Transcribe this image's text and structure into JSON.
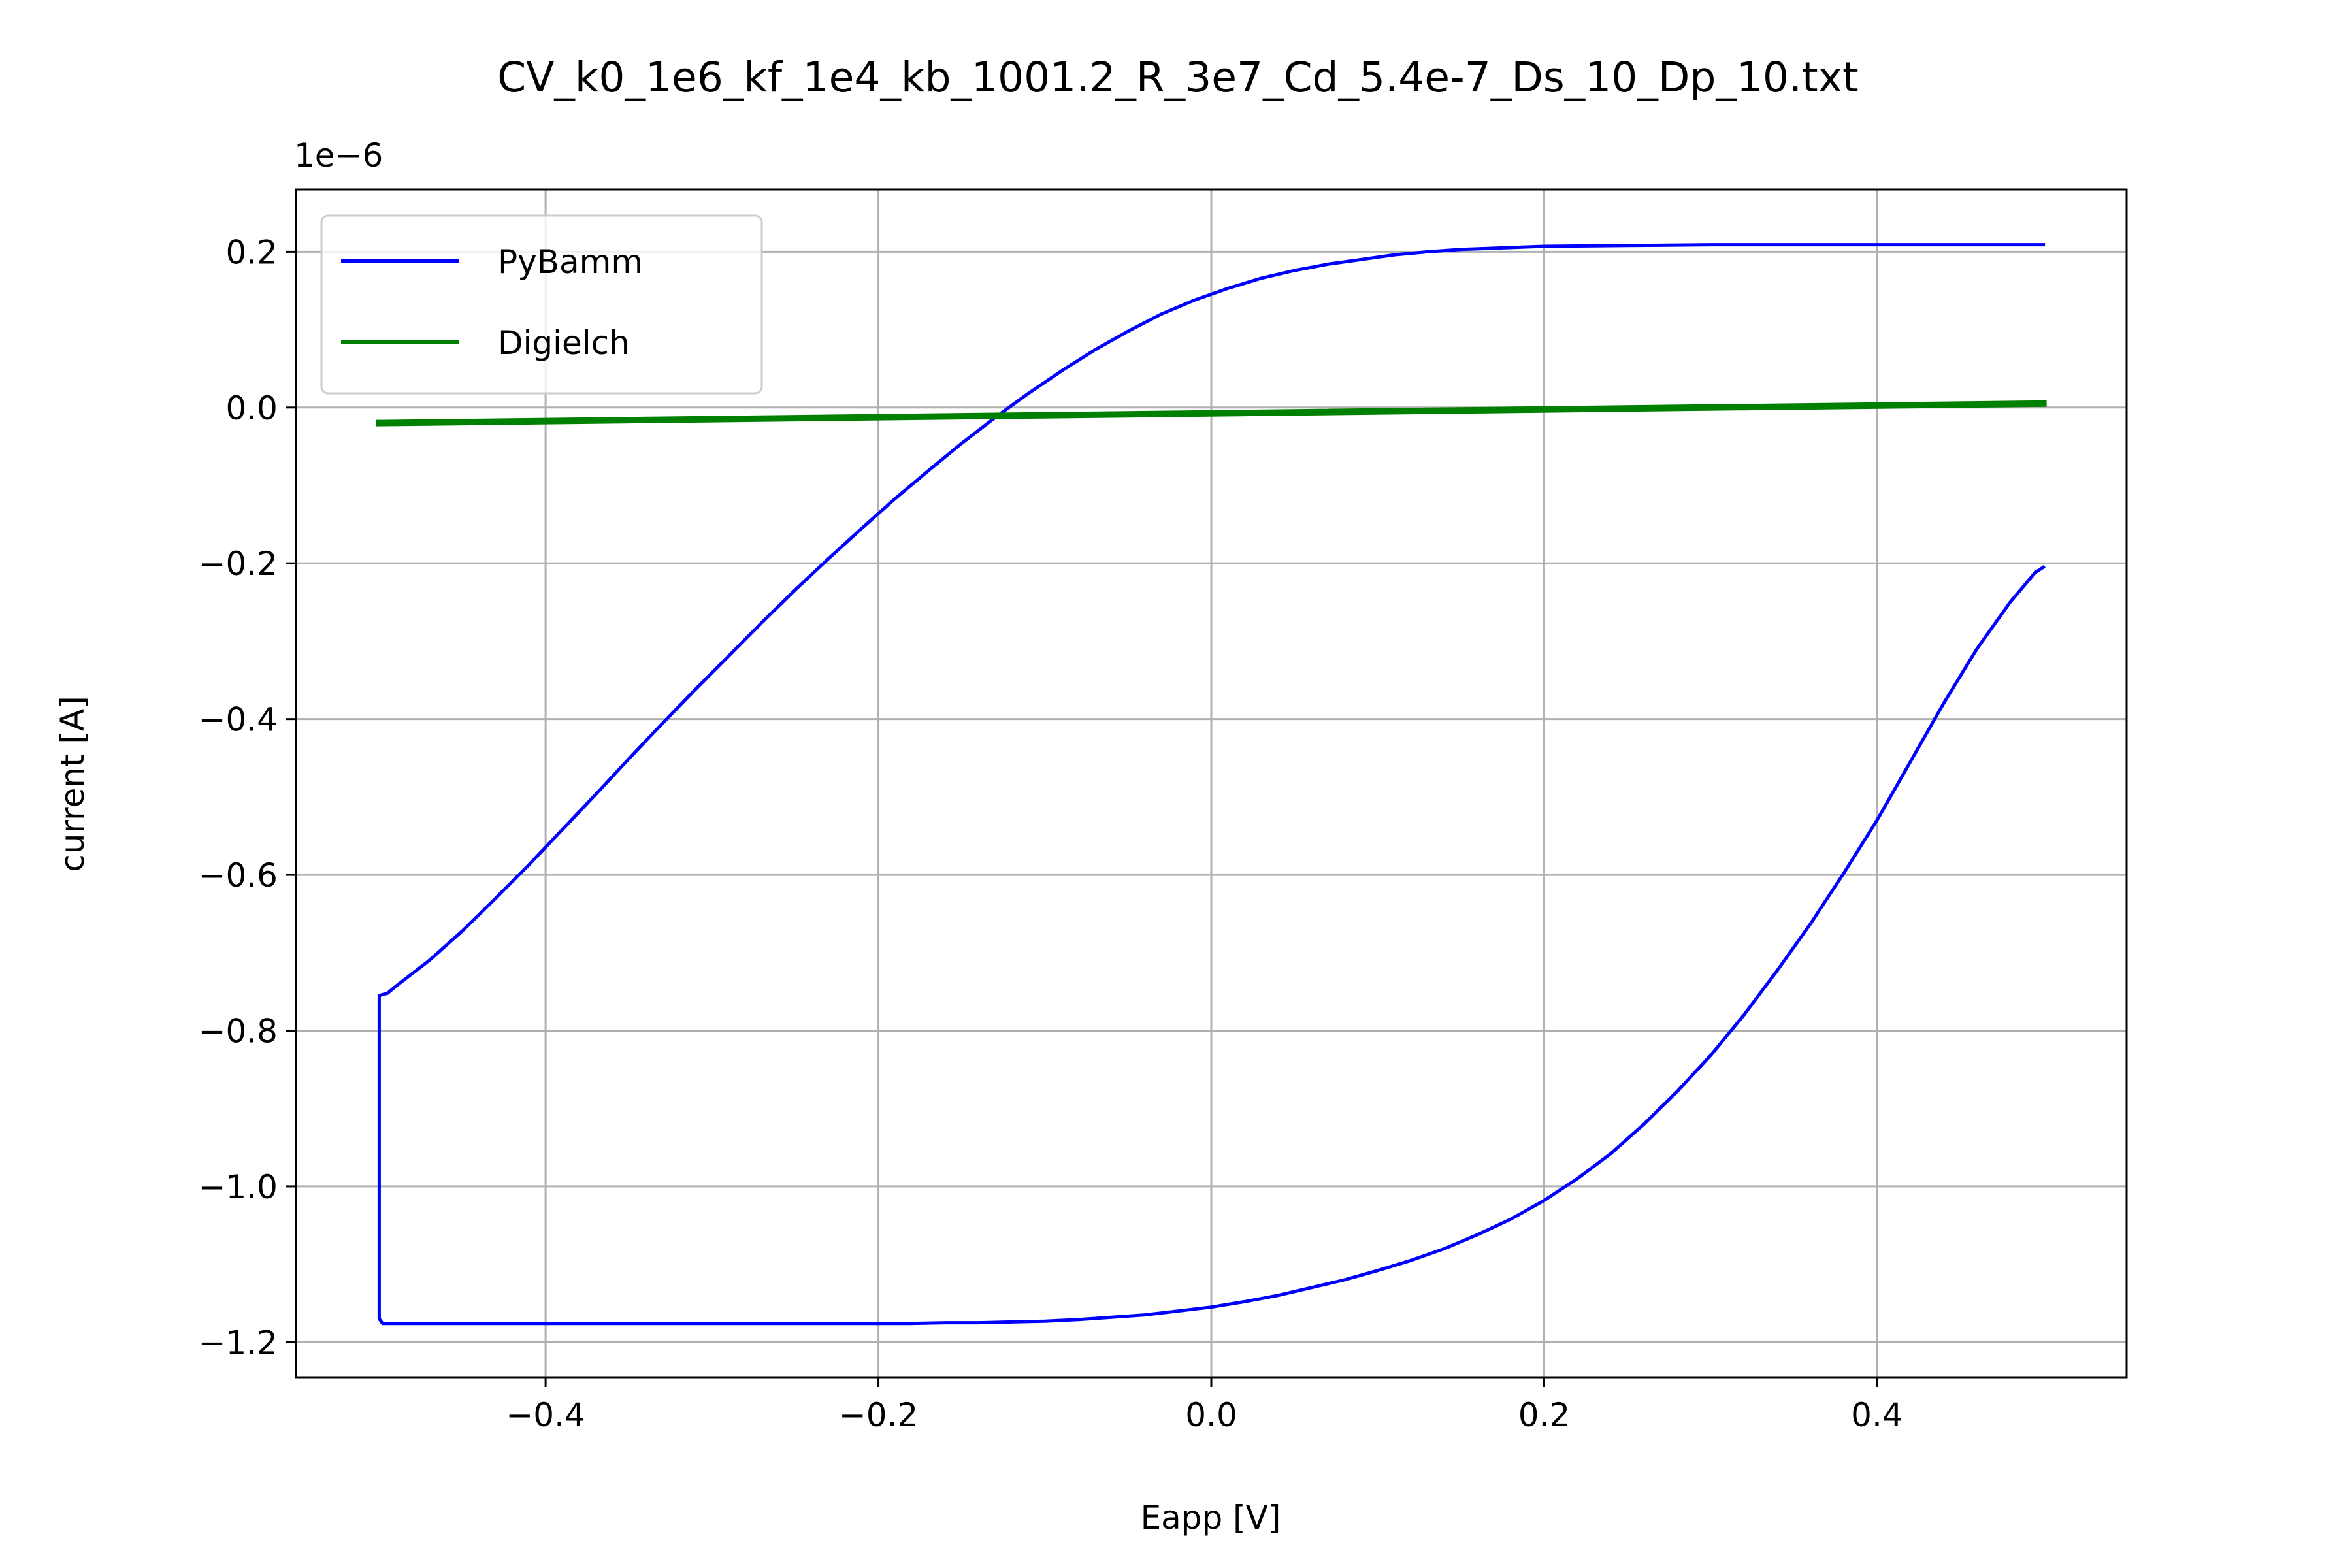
{
  "chart_data": {
    "type": "line",
    "title": "CV_k0_1e6_kf_1e4_kb_1001.2_R_3e7_Cd_5.4e-7_Ds_10_Dp_10.txt",
    "xlabel": "Eapp [V]",
    "ylabel": "current [A]",
    "y_offset_text": "1e−6",
    "y_scale_factor": 1e-06,
    "xlim": [
      -0.55,
      0.55
    ],
    "ylim": [
      -1.245,
      0.28
    ],
    "x_ticks": [
      -0.4,
      -0.2,
      0.0,
      0.2,
      0.4
    ],
    "x_tick_labels": [
      "−0.4",
      "−0.2",
      "0.0",
      "0.2",
      "0.4"
    ],
    "y_ticks": [
      0.2,
      0.0,
      -0.2,
      -0.4,
      -0.6,
      -0.8,
      -1.0,
      -1.2
    ],
    "y_tick_labels": [
      "0.2",
      "0.0",
      "−0.2",
      "−0.4",
      "−0.6",
      "−0.8",
      "−1.0",
      "−1.2"
    ],
    "grid": true,
    "legend_position": "upper left",
    "series": [
      {
        "name": "PyBamm",
        "color": "#0000ff",
        "x": [
          0.5,
          0.495,
          0.48,
          0.46,
          0.44,
          0.42,
          0.4,
          0.38,
          0.36,
          0.34,
          0.32,
          0.3,
          0.28,
          0.26,
          0.24,
          0.22,
          0.2,
          0.18,
          0.16,
          0.14,
          0.12,
          0.1,
          0.08,
          0.06,
          0.04,
          0.02,
          0.0,
          -0.02,
          -0.04,
          -0.06,
          -0.08,
          -0.1,
          -0.12,
          -0.14,
          -0.16,
          -0.18,
          -0.2,
          -0.22,
          -0.24,
          -0.26,
          -0.3,
          -0.35,
          -0.4,
          -0.45,
          -0.498,
          -0.5,
          -0.5,
          -0.495,
          -0.49,
          -0.47,
          -0.45,
          -0.43,
          -0.41,
          -0.39,
          -0.37,
          -0.35,
          -0.33,
          -0.31,
          -0.29,
          -0.27,
          -0.25,
          -0.23,
          -0.21,
          -0.19,
          -0.17,
          -0.15,
          -0.13,
          -0.11,
          -0.09,
          -0.07,
          -0.05,
          -0.03,
          -0.01,
          0.01,
          0.03,
          0.05,
          0.07,
          0.09,
          0.11,
          0.13,
          0.15,
          0.2,
          0.25,
          0.3,
          0.4,
          0.5
        ],
        "y": [
          -0.205,
          -0.212,
          -0.25,
          -0.31,
          -0.38,
          -0.455,
          -0.53,
          -0.598,
          -0.663,
          -0.723,
          -0.78,
          -0.832,
          -0.878,
          -0.92,
          -0.958,
          -0.99,
          -1.018,
          -1.042,
          -1.062,
          -1.08,
          -1.095,
          -1.108,
          -1.12,
          -1.13,
          -1.14,
          -1.148,
          -1.155,
          -1.16,
          -1.165,
          -1.168,
          -1.171,
          -1.173,
          -1.174,
          -1.175,
          -1.175,
          -1.176,
          -1.176,
          -1.176,
          -1.176,
          -1.176,
          -1.176,
          -1.176,
          -1.176,
          -1.176,
          -1.176,
          -1.17,
          -0.755,
          -0.752,
          -0.743,
          -0.71,
          -0.672,
          -0.63,
          -0.587,
          -0.542,
          -0.497,
          -0.451,
          -0.406,
          -0.362,
          -0.319,
          -0.276,
          -0.234,
          -0.194,
          -0.155,
          -0.117,
          -0.081,
          -0.046,
          -0.013,
          0.018,
          0.047,
          0.074,
          0.098,
          0.12,
          0.138,
          0.153,
          0.166,
          0.176,
          0.184,
          0.19,
          0.196,
          0.2,
          0.203,
          0.207,
          0.208,
          0.209,
          0.209,
          0.209
        ]
      },
      {
        "name": "Digielch",
        "color": "#008000",
        "x": [
          -0.5,
          0.5
        ],
        "y": [
          -0.02,
          0.005
        ]
      }
    ]
  }
}
